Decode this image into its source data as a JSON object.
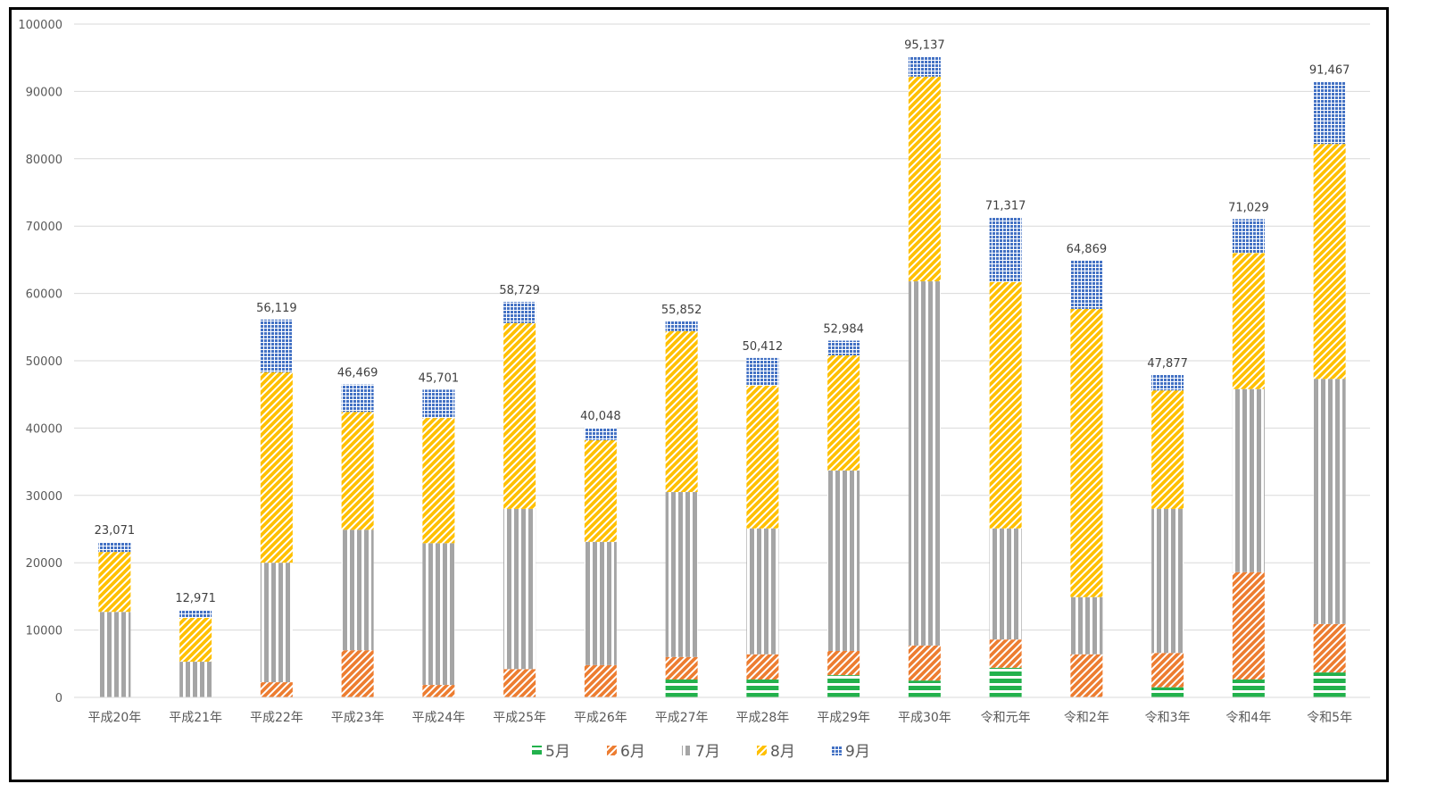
{
  "chart_data": {
    "type": "bar",
    "stacked": true,
    "categories": [
      "平成20年",
      "平成21年",
      "平成22年",
      "平成23年",
      "平成24年",
      "平成25年",
      "平成26年",
      "平成27年",
      "平成28年",
      "平成29年",
      "平成30年",
      "令和元年",
      "令和2年",
      "令和3年",
      "令和4年",
      "令和5年"
    ],
    "series": [
      {
        "name": "5月",
        "color": "#22b14c",
        "pattern": "horizontal-stripes",
        "values": [
          0,
          0,
          0,
          0,
          0,
          0,
          0,
          2650,
          2650,
          3300,
          2500,
          4400,
          0,
          1500,
          2650,
          3700
        ]
      },
      {
        "name": "6月",
        "color": "#ed7d31",
        "pattern": "diagonal-stripes",
        "values": [
          0,
          0,
          2250,
          7000,
          1850,
          4200,
          4800,
          3350,
          3750,
          3600,
          5200,
          4200,
          6400,
          5100,
          15950,
          7200
        ]
      },
      {
        "name": "7月",
        "color": "#a5a5a5",
        "pattern": "vertical-stripes",
        "values": [
          12700,
          5300,
          17750,
          17900,
          21050,
          23800,
          18300,
          24500,
          18700,
          26800,
          54100,
          16500,
          8500,
          21400,
          27200,
          36400
        ]
      },
      {
        "name": "8月",
        "color": "#ffc000",
        "pattern": "diagonal-stripes",
        "values": [
          8900,
          6500,
          28300,
          17500,
          18600,
          27600,
          15100,
          23900,
          21200,
          17100,
          30400,
          36600,
          42800,
          17600,
          20200,
          34900
        ]
      },
      {
        "name": "9月",
        "color": "#4472c4",
        "pattern": "grid",
        "values": [
          1471,
          1171,
          7819,
          4069,
          4201,
          3129,
          1848,
          1452,
          4112,
          2184,
          2937,
          9617,
          7169,
          2277,
          5029,
          9267
        ]
      }
    ],
    "totals": [
      "23,071",
      "12,971",
      "56,119",
      "46,469",
      "45,701",
      "58,729",
      "40,048",
      "55,852",
      "50,412",
      "52,984",
      "95,137",
      "71,317",
      "64,869",
      "47,877",
      "71,029",
      "91,467"
    ],
    "yticks": [
      "0",
      "10000",
      "20000",
      "30000",
      "40000",
      "50000",
      "60000",
      "70000",
      "80000",
      "90000",
      "100000"
    ],
    "ylim": [
      0,
      100000
    ],
    "grid": true,
    "legend": "bottom"
  }
}
